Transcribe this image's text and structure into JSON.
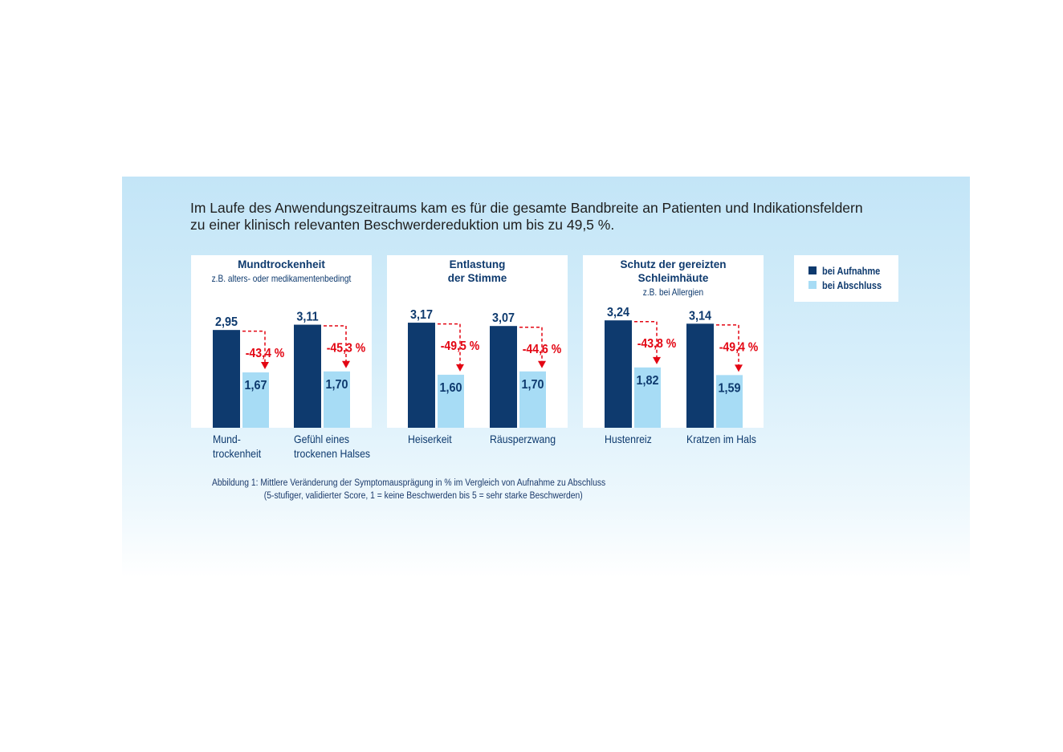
{
  "headline": {
    "line1": "Im Laufe des Anwendungszeitraums kam es für die gesamte Bandbreite an Patienten und Indikationsfeldern",
    "line2": "zu einer klinisch relevanten Beschwerdereduktion um bis zu 49,5 %."
  },
  "legend": {
    "items": [
      {
        "label": "bei Aufnahme",
        "color": "#0e3a6e"
      },
      {
        "label": "bei Abschluss",
        "color": "#a7dcf5"
      }
    ]
  },
  "caption": {
    "line1": "Abbildung 1: Mittlere Veränderung der Symptomausprägung in % im Vergleich von Aufnahme zu Abschluss",
    "line2": "(5-stufiger, validierter Score, 1 = keine Beschwerden bis 5 = sehr starke Beschwerden)"
  },
  "colors": {
    "aufnahme": "#0e3a6e",
    "abschluss": "#a7dcf5",
    "change": "#e30613",
    "text": "#0e3a6e"
  },
  "chart_data": [
    {
      "type": "bar",
      "title": "Mundtrockenheit",
      "subtitle": "z.B. alters- oder medikamentenbedingt",
      "categories": [
        "Mund-\ntrockenheit",
        "Gefühl eines\ntrockenen Halses"
      ],
      "series": [
        {
          "name": "bei Aufnahme",
          "values": [
            2.95,
            3.11
          ],
          "labels": [
            "2,95",
            "3,11"
          ]
        },
        {
          "name": "bei Abschluss",
          "values": [
            1.67,
            1.7
          ],
          "labels": [
            "1,67",
            "1,70"
          ]
        }
      ],
      "changes": [
        "-43,4 %",
        "-45,3 %"
      ]
    },
    {
      "type": "bar",
      "title": "Entlastung\nder Stimme",
      "subtitle": "",
      "categories": [
        "Heiserkeit",
        "Räusperzwang"
      ],
      "series": [
        {
          "name": "bei Aufnahme",
          "values": [
            3.17,
            3.07
          ],
          "labels": [
            "3,17",
            "3,07"
          ]
        },
        {
          "name": "bei Abschluss",
          "values": [
            1.6,
            1.7
          ],
          "labels": [
            "1,60",
            "1,70"
          ]
        }
      ],
      "changes": [
        "-49,5 %",
        "-44,6 %"
      ]
    },
    {
      "type": "bar",
      "title": "Schutz der gereizten\nSchleimhäute",
      "subtitle": "z.B. bei Allergien",
      "categories": [
        "Hustenreiz",
        "Kratzen im Hals"
      ],
      "series": [
        {
          "name": "bei Aufnahme",
          "values": [
            3.24,
            3.14
          ],
          "labels": [
            "3,24",
            "3,14"
          ]
        },
        {
          "name": "bei Abschluss",
          "values": [
            1.82,
            1.59
          ],
          "labels": [
            "1,82",
            "1,59"
          ]
        }
      ],
      "changes": [
        "-43,8 %",
        "-49,4 %"
      ]
    }
  ]
}
